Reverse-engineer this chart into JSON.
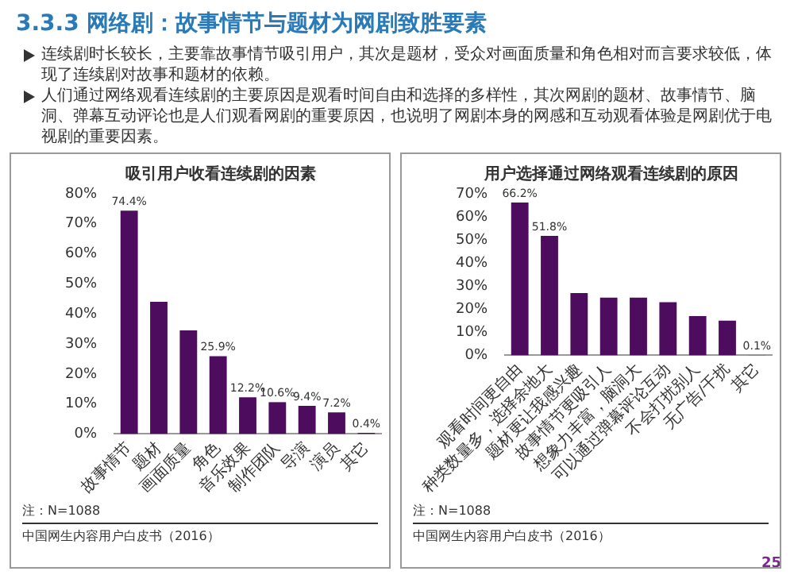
{
  "chart_data": [
    {
      "type": "other",
      "title": "3.3.3 网络剧：故事情节与题材为网剧致胜要素",
      "annotations": [
        "连续剧时长较长，主要靠故事情节吸引用户，其次是题材，受众对画面质量和角色相对而言要求较低，体现了连续剧对故事和题材的依赖。",
        "人们通过网络观看连续剧的主要原因是观看时间自由和选择的多样性，其次网剧的题材、故事情节、脑洞、弹幕互动评论也是人们观看网剧的重要原因，也说明了网剧本身的网感和互动观看体验是网剧优于电视剧的重要因素。",
        "25"
      ]
    },
    {
      "type": "bar",
      "title": "吸引用户收看连续剧的因素",
      "categories": [
        "故事情节",
        "题材",
        "画面质量",
        "角色",
        "音乐效果",
        "制作团队",
        "导演",
        "演员",
        "其它"
      ],
      "values": [
        74.4,
        44,
        34.5,
        25.9,
        12.2,
        10.6,
        9.4,
        7.2,
        0.4
      ],
      "value_labels": [
        "74.4%",
        null,
        null,
        "25.9%",
        "12.2%",
        "10.6%",
        "9.4%",
        "7.2%",
        "0.4%"
      ],
      "color": "#4e0c5e",
      "ylim": [
        0,
        80
      ],
      "yticks": [
        {
          "value": 0,
          "label": "0%"
        },
        {
          "value": 10,
          "label": "10%"
        },
        {
          "value": 20,
          "label": "20%"
        },
        {
          "value": 30,
          "label": "30%"
        },
        {
          "value": 40,
          "label": "40%"
        },
        {
          "value": 50,
          "label": "50%"
        },
        {
          "value": 60,
          "label": "60%"
        },
        {
          "value": 70,
          "label": "70%"
        },
        {
          "value": 80,
          "label": "80%"
        }
      ],
      "grid": false,
      "legend": false,
      "annotations": [
        "注：N=1088",
        "中国网生内容用户白皮书（2016）"
      ]
    },
    {
      "type": "bar",
      "title": "用户选择通过网络观看连续剧的原因",
      "categories": [
        "观看时间更自由",
        "种类数量多，选择余地大",
        "题材更让我感兴趣",
        "故事情节更吸引人",
        "想象力丰富，脑洞大",
        "可以通过弹幕评论互动",
        "不会打扰别人",
        "无广告/干扰",
        "其它"
      ],
      "values": [
        66.2,
        51.8,
        27,
        25,
        25,
        23,
        17,
        15,
        0.1
      ],
      "value_labels": [
        "66.2%",
        "51.8%",
        null,
        null,
        null,
        null,
        null,
        null,
        "0.1%"
      ],
      "color": "#4e0c5e",
      "ylim": [
        0,
        70
      ],
      "yticks": [
        {
          "value": 0,
          "label": "0%"
        },
        {
          "value": 10,
          "label": "10%"
        },
        {
          "value": 20,
          "label": "20%"
        },
        {
          "value": 30,
          "label": "30%"
        },
        {
          "value": 40,
          "label": "40%"
        },
        {
          "value": 50,
          "label": "50%"
        },
        {
          "value": 60,
          "label": "60%"
        },
        {
          "value": 70,
          "label": "70%"
        }
      ],
      "grid": false,
      "legend": false,
      "annotations": [
        "注：N=1088",
        "中国网生内容用户白皮书（2016）"
      ]
    }
  ]
}
